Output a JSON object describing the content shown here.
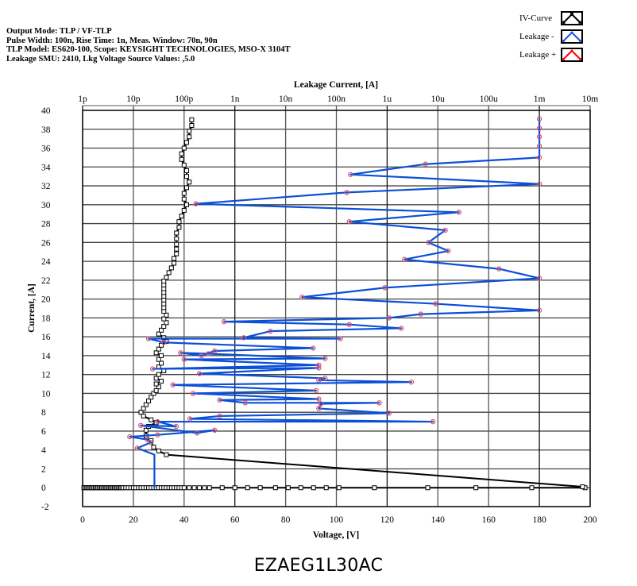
{
  "header": {
    "lines": [
      "Output Mode: TLP / VF-TLP",
      "Pulse Width: 100n, Rise Time: 1n, Meas. Window: 70n, 90n",
      "TLP Model: ES620-100, Scope: KEYSIGHT TECHNOLOGIES, MSO-X 3104T",
      "Leakage SMU: 2410, Lkg Voltage Source Values: ,5.0"
    ]
  },
  "legend": [
    {
      "label": "IV-Curve",
      "color": "#000000"
    },
    {
      "label": "Leakage -",
      "color": "#0050e6"
    },
    {
      "label": "Leakage +",
      "color": "#ff0000"
    }
  ],
  "caption": "EZAEG1L30AC",
  "colors": {
    "iv_curve": "#000000",
    "leakage_minus": "#0a4fd8",
    "leakage_marker": "#e0506a",
    "grid": "#555555"
  },
  "chart_data": {
    "type": "line",
    "title": "",
    "xlabel": "Voltage, [V]",
    "ylabel": "Current, [A]",
    "x2label": "Leakage Current, [A]",
    "xlim": [
      0,
      200
    ],
    "ylim": [
      -2,
      40
    ],
    "x2lim_log": [
      "1p",
      "10m"
    ],
    "x_ticks": [
      0,
      20,
      40,
      60,
      80,
      100,
      120,
      140,
      160,
      180,
      200
    ],
    "y_ticks": [
      -2,
      0,
      2,
      4,
      6,
      8,
      10,
      12,
      14,
      16,
      18,
      20,
      22,
      24,
      26,
      28,
      30,
      32,
      34,
      36,
      38,
      40
    ],
    "x2_ticks": [
      "1p",
      "10p",
      "100p",
      "1n",
      "10n",
      "100n",
      "1u",
      "10u",
      "100u",
      "1m",
      "10m"
    ],
    "grid": true,
    "legend_position": "top-right",
    "series": [
      {
        "name": "IV-Curve",
        "axis": "voltage",
        "points": [
          [
            0.5,
            0
          ],
          [
            1,
            0
          ],
          [
            1.5,
            0
          ],
          [
            2,
            0
          ],
          [
            2.5,
            0
          ],
          [
            3,
            0
          ],
          [
            3.5,
            0
          ],
          [
            4,
            0
          ],
          [
            4.5,
            0
          ],
          [
            5,
            0
          ],
          [
            5.5,
            0
          ],
          [
            6,
            0
          ],
          [
            6.5,
            0
          ],
          [
            7,
            0
          ],
          [
            7.5,
            0
          ],
          [
            8,
            0
          ],
          [
            8.5,
            0
          ],
          [
            9,
            0
          ],
          [
            9.5,
            0
          ],
          [
            10,
            0
          ],
          [
            10.5,
            0
          ],
          [
            11,
            0
          ],
          [
            11.5,
            0
          ],
          [
            12,
            0
          ],
          [
            12.5,
            0
          ],
          [
            13,
            0
          ],
          [
            13.5,
            0
          ],
          [
            14,
            0
          ],
          [
            14.5,
            0
          ],
          [
            15,
            0
          ],
          [
            15.5,
            0
          ],
          [
            16,
            0
          ],
          [
            17,
            0
          ],
          [
            18,
            0
          ],
          [
            19,
            0
          ],
          [
            20,
            0
          ],
          [
            21,
            0
          ],
          [
            22,
            0
          ],
          [
            23,
            0
          ],
          [
            24,
            0
          ],
          [
            25,
            0
          ],
          [
            26,
            0
          ],
          [
            27,
            0
          ],
          [
            28,
            0
          ],
          [
            29,
            0
          ],
          [
            30,
            0
          ],
          [
            31,
            0
          ],
          [
            32,
            0
          ],
          [
            33,
            0
          ],
          [
            34,
            0
          ],
          [
            35,
            0
          ],
          [
            36,
            0
          ],
          [
            37,
            0
          ],
          [
            38,
            0
          ],
          [
            39,
            0
          ],
          [
            40,
            0
          ],
          [
            42,
            0
          ],
          [
            44,
            0
          ],
          [
            46,
            0
          ],
          [
            48,
            0
          ],
          [
            50,
            0
          ],
          [
            55,
            0
          ],
          [
            60,
            0
          ],
          [
            65,
            0
          ],
          [
            70,
            0
          ],
          [
            76,
            0
          ],
          [
            81,
            0
          ],
          [
            86,
            0
          ],
          [
            91,
            0
          ],
          [
            96,
            0
          ],
          [
            101,
            0
          ],
          [
            115,
            0
          ],
          [
            136,
            0
          ],
          [
            155,
            0
          ],
          [
            177,
            0
          ],
          [
            198,
            0
          ],
          [
            197,
            0.1
          ],
          [
            33,
            3.5
          ],
          [
            30,
            3.9
          ],
          [
            28,
            4.3
          ],
          [
            27,
            5.0
          ],
          [
            25,
            5.5
          ],
          [
            25,
            6.1
          ],
          [
            26,
            6.5
          ],
          [
            29,
            6.9
          ],
          [
            27,
            7.2
          ],
          [
            24,
            7.6
          ],
          [
            23,
            8.0
          ],
          [
            24,
            8.4
          ],
          [
            25,
            8.8
          ],
          [
            26,
            9.2
          ],
          [
            27,
            9.6
          ],
          [
            28,
            10.0
          ],
          [
            29,
            10.3
          ],
          [
            30,
            10.7
          ],
          [
            29,
            11.0
          ],
          [
            31,
            11.3
          ],
          [
            29,
            11.6
          ],
          [
            30,
            12.0
          ],
          [
            32,
            12.4
          ],
          [
            30,
            12.8
          ],
          [
            31,
            13.2
          ],
          [
            30,
            13.6
          ],
          [
            31,
            14.0
          ],
          [
            29,
            14.3
          ],
          [
            30,
            14.7
          ],
          [
            31,
            15.1
          ],
          [
            33,
            15.5
          ],
          [
            32,
            15.9
          ],
          [
            30,
            16.3
          ],
          [
            31,
            16.7
          ],
          [
            32,
            17.1
          ],
          [
            33,
            17.5
          ],
          [
            32,
            17.9
          ],
          [
            33,
            18.3
          ],
          [
            32,
            18.7
          ],
          [
            32,
            19.1
          ],
          [
            32,
            19.5
          ],
          [
            32,
            19.9
          ],
          [
            32,
            20.3
          ],
          [
            32,
            20.7
          ],
          [
            32,
            21.1
          ],
          [
            32,
            21.5
          ],
          [
            32,
            21.9
          ],
          [
            33,
            22.3
          ],
          [
            34,
            22.8
          ],
          [
            35,
            23.3
          ],
          [
            36,
            23.8
          ],
          [
            36,
            24.3
          ],
          [
            37,
            24.8
          ],
          [
            37,
            25.3
          ],
          [
            37,
            25.8
          ],
          [
            37,
            26.4
          ],
          [
            37,
            27.0
          ],
          [
            38,
            27.6
          ],
          [
            38,
            28.2
          ],
          [
            39,
            28.8
          ],
          [
            40,
            29.4
          ],
          [
            41,
            30.0
          ],
          [
            40,
            30.6
          ],
          [
            40,
            31.2
          ],
          [
            41,
            31.8
          ],
          [
            42,
            32.4
          ],
          [
            41,
            33.0
          ],
          [
            41,
            33.6
          ],
          [
            40,
            34.2
          ],
          [
            39,
            34.8
          ],
          [
            39,
            35.4
          ],
          [
            40,
            36.0
          ],
          [
            41,
            36.6
          ],
          [
            42,
            37.2
          ],
          [
            42,
            37.8
          ],
          [
            43,
            38.4
          ],
          [
            43,
            39.0
          ]
        ]
      },
      {
        "name": "Leakage -",
        "axis": "leakage",
        "points": [
          [
            "26p",
            0
          ],
          [
            "26p",
            3.5
          ],
          [
            "12p",
            4.2
          ],
          [
            "22p",
            4.8
          ],
          [
            "19p",
            5.1
          ],
          [
            "8.5p",
            5.4
          ],
          [
            "30p",
            5.6
          ],
          [
            "400p",
            6.1
          ],
          [
            "180p",
            5.8
          ],
          [
            "14p",
            6.6
          ],
          [
            "70p",
            6.5
          ],
          [
            "30p",
            7.0
          ],
          [
            "8u",
            7.0
          ],
          [
            "130p",
            7.3
          ],
          [
            "500p",
            7.6
          ],
          [
            "1.1u",
            7.9
          ],
          [
            "45n",
            8.4
          ],
          [
            "50n",
            8.9
          ],
          [
            "0.7u",
            9.0
          ],
          [
            "1.6n",
            9.0
          ],
          [
            "500p",
            9.3
          ],
          [
            "45n",
            9.4
          ],
          [
            "150p",
            10.0
          ],
          [
            "40n",
            10.3
          ],
          [
            "60p",
            10.9
          ],
          [
            "3u",
            11.2
          ],
          [
            "45n",
            11.4
          ],
          [
            "60n",
            11.6
          ],
          [
            "200p",
            12.1
          ],
          [
            "45n",
            12.7
          ],
          [
            "24p",
            12.6
          ],
          [
            "45n",
            13.0
          ],
          [
            "100p",
            13.6
          ],
          [
            "60n",
            13.7
          ],
          [
            "300p",
            14.2
          ],
          [
            "85p",
            14.3
          ],
          [
            "220p",
            14.0
          ],
          [
            "400p",
            14.5
          ],
          [
            "35n",
            14.8
          ],
          [
            "40p",
            15.4
          ],
          [
            "20p",
            15.8
          ],
          [
            "120n",
            15.8
          ],
          [
            "1.5n",
            15.9
          ],
          [
            "5n",
            16.6
          ],
          [
            "1.9u",
            16.9
          ],
          [
            "180n",
            17.3
          ],
          [
            "610p",
            17.6
          ],
          [
            "1.1u",
            18.0
          ],
          [
            "4.6u",
            18.4
          ],
          [
            "1m",
            18.8
          ],
          [
            "9u",
            19.5
          ],
          [
            "21n",
            20.2
          ],
          [
            "900n",
            21.2
          ],
          [
            "1m",
            22.2
          ],
          [
            "160u",
            23.2
          ],
          [
            "2.2u",
            24.2
          ],
          [
            "16u",
            25.1
          ],
          [
            "6.5u",
            26.0
          ],
          [
            "14u",
            27.3
          ],
          [
            "180n",
            28.2
          ],
          [
            "26u",
            29.2
          ],
          [
            "170p",
            30.1
          ],
          [
            "160n",
            31.3
          ],
          [
            "1m",
            32.2
          ],
          [
            "190n",
            33.2
          ],
          [
            "5.7u",
            34.3
          ],
          [
            "1m",
            35.0
          ],
          [
            "1m",
            36.2
          ],
          [
            "1m",
            37.2
          ],
          [
            "1m",
            38.1
          ],
          [
            "1m",
            39.1
          ]
        ]
      },
      {
        "name": "Leakage +",
        "axis": "leakage",
        "points": []
      }
    ]
  }
}
